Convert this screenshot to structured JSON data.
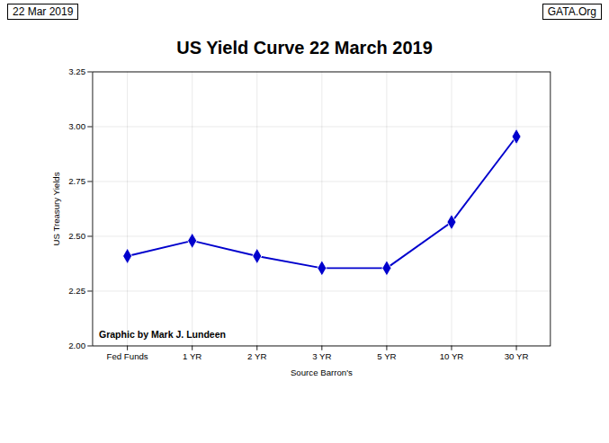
{
  "chart_data": {
    "type": "line",
    "title": "US Yield Curve 22 March 2019",
    "xlabel": "Source Barron's",
    "ylabel": "US Treasury Yields",
    "annotations": [
      "22 Mar 2019",
      "GATA.Org",
      "Graphic by Mark J. Lundeen"
    ],
    "categories": [
      "Fed Funds",
      "1 YR",
      "2 YR",
      "3 YR",
      "5 YR",
      "10 YR",
      "30 YR"
    ],
    "values": [
      2.41,
      2.48,
      2.41,
      2.355,
      2.355,
      2.565,
      2.955
    ],
    "color": "#0000CD",
    "marker": "diamond",
    "ylim": [
      2.0,
      3.25
    ],
    "yticks": [
      {
        "value": 2.0,
        "label": "2.00"
      },
      {
        "value": 2.25,
        "label": "2.25"
      },
      {
        "value": 2.5,
        "label": "2.50"
      },
      {
        "value": 2.75,
        "label": "2.75"
      },
      {
        "value": 3.0,
        "label": "3.00"
      },
      {
        "value": 3.25,
        "label": "3.25"
      }
    ],
    "grid": true
  }
}
